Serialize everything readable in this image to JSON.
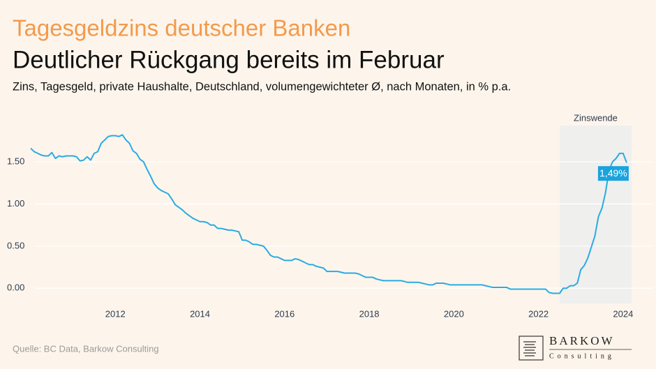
{
  "chart_data": {
    "type": "line",
    "title": "Tagesgeldzins deutscher Banken",
    "subtitle": "Deutlicher Rückgang bereits im Februar",
    "description": "Zins, Tagesgeld, private Haushalte, Deutschland, volumengewichteter Ø, nach Monaten, in % p.a.",
    "source": "Quelle: BC Data, Barkow Consulting",
    "shaded_region": {
      "label": "Zinswende",
      "x": [
        2022.5,
        2024.2
      ]
    },
    "annotation": {
      "text": "1,49%",
      "x": 2024.083,
      "y": 1.49
    },
    "xlim": [
      2010,
      2024.2
    ],
    "xticks": [
      2012,
      2014,
      2016,
      2018,
      2020,
      2022,
      2024
    ],
    "ylim": [
      -0.18,
      1.93
    ],
    "yticks": [
      {
        "value": 0,
        "label": "0.00"
      },
      {
        "value": 0.5,
        "label": "0.50"
      },
      {
        "value": 1,
        "label": "1.00"
      },
      {
        "value": 1.5,
        "label": "1.50"
      }
    ],
    "grid": true,
    "x": [
      2010,
      2010.083,
      2010.167,
      2010.25,
      2010.333,
      2010.417,
      2010.5,
      2010.583,
      2010.667,
      2010.75,
      2010.833,
      2010.917,
      2011,
      2011.083,
      2011.167,
      2011.25,
      2011.333,
      2011.417,
      2011.5,
      2011.583,
      2011.667,
      2011.75,
      2011.833,
      2011.917,
      2012,
      2012.083,
      2012.167,
      2012.25,
      2012.333,
      2012.417,
      2012.5,
      2012.583,
      2012.667,
      2012.75,
      2012.833,
      2012.917,
      2013,
      2013.083,
      2013.167,
      2013.25,
      2013.333,
      2013.417,
      2013.5,
      2013.583,
      2013.667,
      2013.75,
      2013.833,
      2013.917,
      2014,
      2014.083,
      2014.167,
      2014.25,
      2014.333,
      2014.417,
      2014.5,
      2014.583,
      2014.667,
      2014.75,
      2014.833,
      2014.917,
      2015,
      2015.083,
      2015.167,
      2015.25,
      2015.333,
      2015.417,
      2015.5,
      2015.583,
      2015.667,
      2015.75,
      2015.833,
      2015.917,
      2016,
      2016.083,
      2016.167,
      2016.25,
      2016.333,
      2016.417,
      2016.5,
      2016.583,
      2016.667,
      2016.75,
      2016.833,
      2016.917,
      2017,
      2017.083,
      2017.167,
      2017.25,
      2017.333,
      2017.417,
      2017.5,
      2017.583,
      2017.667,
      2017.75,
      2017.833,
      2017.917,
      2018,
      2018.083,
      2018.167,
      2018.25,
      2018.333,
      2018.417,
      2018.5,
      2018.583,
      2018.667,
      2018.75,
      2018.833,
      2018.917,
      2019,
      2019.083,
      2019.167,
      2019.25,
      2019.333,
      2019.417,
      2019.5,
      2019.583,
      2019.667,
      2019.75,
      2019.833,
      2019.917,
      2020,
      2020.083,
      2020.167,
      2020.25,
      2020.333,
      2020.417,
      2020.5,
      2020.583,
      2020.667,
      2020.75,
      2020.833,
      2020.917,
      2021,
      2021.083,
      2021.167,
      2021.25,
      2021.333,
      2021.417,
      2021.5,
      2021.583,
      2021.667,
      2021.75,
      2021.833,
      2021.917,
      2022,
      2022.083,
      2022.167,
      2022.25,
      2022.333,
      2022.417,
      2022.5,
      2022.583,
      2022.667,
      2022.75,
      2022.833,
      2022.917,
      2023,
      2023.083,
      2023.167,
      2023.25,
      2023.333,
      2023.417,
      2023.5,
      2023.583,
      2023.667,
      2023.75,
      2023.833,
      2023.917,
      2024,
      2024.083
    ],
    "series": [
      {
        "name": "Zins, Tagesgeld",
        "color": "#29abe2",
        "values": [
          1.66,
          1.62,
          1.6,
          1.58,
          1.57,
          1.57,
          1.61,
          1.54,
          1.57,
          1.56,
          1.57,
          1.57,
          1.57,
          1.56,
          1.51,
          1.52,
          1.56,
          1.52,
          1.6,
          1.62,
          1.72,
          1.76,
          1.8,
          1.81,
          1.81,
          1.8,
          1.82,
          1.76,
          1.72,
          1.63,
          1.6,
          1.53,
          1.5,
          1.41,
          1.33,
          1.24,
          1.19,
          1.16,
          1.14,
          1.12,
          1.06,
          0.99,
          0.96,
          0.93,
          0.89,
          0.86,
          0.83,
          0.81,
          0.79,
          0.79,
          0.78,
          0.75,
          0.75,
          0.71,
          0.71,
          0.7,
          0.69,
          0.69,
          0.68,
          0.67,
          0.57,
          0.57,
          0.55,
          0.52,
          0.52,
          0.51,
          0.5,
          0.45,
          0.39,
          0.37,
          0.37,
          0.35,
          0.33,
          0.33,
          0.33,
          0.35,
          0.34,
          0.32,
          0.3,
          0.28,
          0.28,
          0.26,
          0.25,
          0.24,
          0.2,
          0.2,
          0.2,
          0.2,
          0.19,
          0.18,
          0.18,
          0.18,
          0.18,
          0.17,
          0.15,
          0.13,
          0.13,
          0.13,
          0.11,
          0.1,
          0.09,
          0.09,
          0.09,
          0.09,
          0.09,
          0.09,
          0.08,
          0.07,
          0.07,
          0.07,
          0.07,
          0.06,
          0.05,
          0.04,
          0.04,
          0.06,
          0.06,
          0.06,
          0.05,
          0.04,
          0.04,
          0.04,
          0.04,
          0.04,
          0.04,
          0.04,
          0.04,
          0.04,
          0.04,
          0.03,
          0.02,
          0.01,
          0.01,
          0.01,
          0.01,
          0.01,
          -0.01,
          -0.01,
          -0.01,
          -0.01,
          -0.01,
          -0.01,
          -0.01,
          -0.01,
          -0.01,
          -0.01,
          -0.01,
          -0.05,
          -0.06,
          -0.06,
          -0.06,
          0.0,
          0.0,
          0.03,
          0.03,
          0.06,
          0.22,
          0.27,
          0.36,
          0.49,
          0.62,
          0.85,
          0.95,
          1.13,
          1.4,
          1.5,
          1.54,
          1.6,
          1.6,
          1.49
        ]
      }
    ]
  },
  "logo": {
    "name": "BARKOW",
    "sub": "Consulting"
  }
}
